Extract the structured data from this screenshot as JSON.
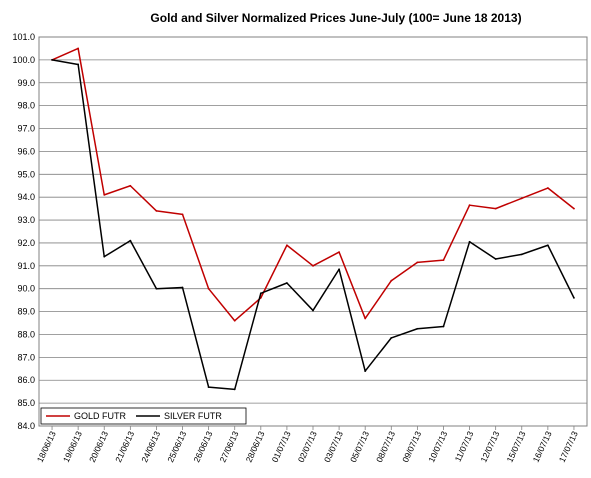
{
  "chart_data": {
    "type": "line",
    "title": "Gold and Silver Normalized Prices  June-July (100= June 18  2013)",
    "xlabel": "",
    "ylabel": "",
    "ylim": [
      84.0,
      101.0
    ],
    "ytick_labels": [
      "84.0",
      "85.0",
      "86.0",
      "87.0",
      "88.0",
      "89.0",
      "90.0",
      "91.0",
      "92.0",
      "93.0",
      "94.0",
      "95.0",
      "96.0",
      "97.0",
      "98.0",
      "99.0",
      "100.0",
      "101.0"
    ],
    "categories": [
      "18/06/13",
      "19/06/13",
      "20/06/13",
      "21/06/13",
      "24/06/13",
      "25/06/13",
      "26/06/13",
      "27/06/13",
      "28/06/13",
      "01/07/13",
      "02/07/13",
      "03/07/13",
      "05/07/13",
      "08/07/13",
      "09/07/13",
      "10/07/13",
      "11/07/13",
      "12/07/13",
      "15/07/13",
      "16/07/13",
      "17/07/13"
    ],
    "grid": true,
    "legend_position": "bottom-left",
    "series": [
      {
        "name": "GOLD  FUTR",
        "color": "#c00000",
        "values": [
          100.0,
          100.5,
          94.1,
          94.5,
          93.4,
          93.25,
          90.0,
          88.6,
          89.6,
          91.9,
          91.0,
          91.6,
          88.7,
          90.35,
          91.15,
          91.25,
          93.65,
          93.5,
          93.95,
          94.4,
          93.5
        ]
      },
      {
        "name": "SILVER  FUTR",
        "color": "#000000",
        "values": [
          100.0,
          99.8,
          91.4,
          92.1,
          90.0,
          90.05,
          85.7,
          85.6,
          89.8,
          90.25,
          89.05,
          90.85,
          86.4,
          87.85,
          88.25,
          88.35,
          92.05,
          91.3,
          91.5,
          91.9,
          89.6
        ]
      }
    ]
  }
}
